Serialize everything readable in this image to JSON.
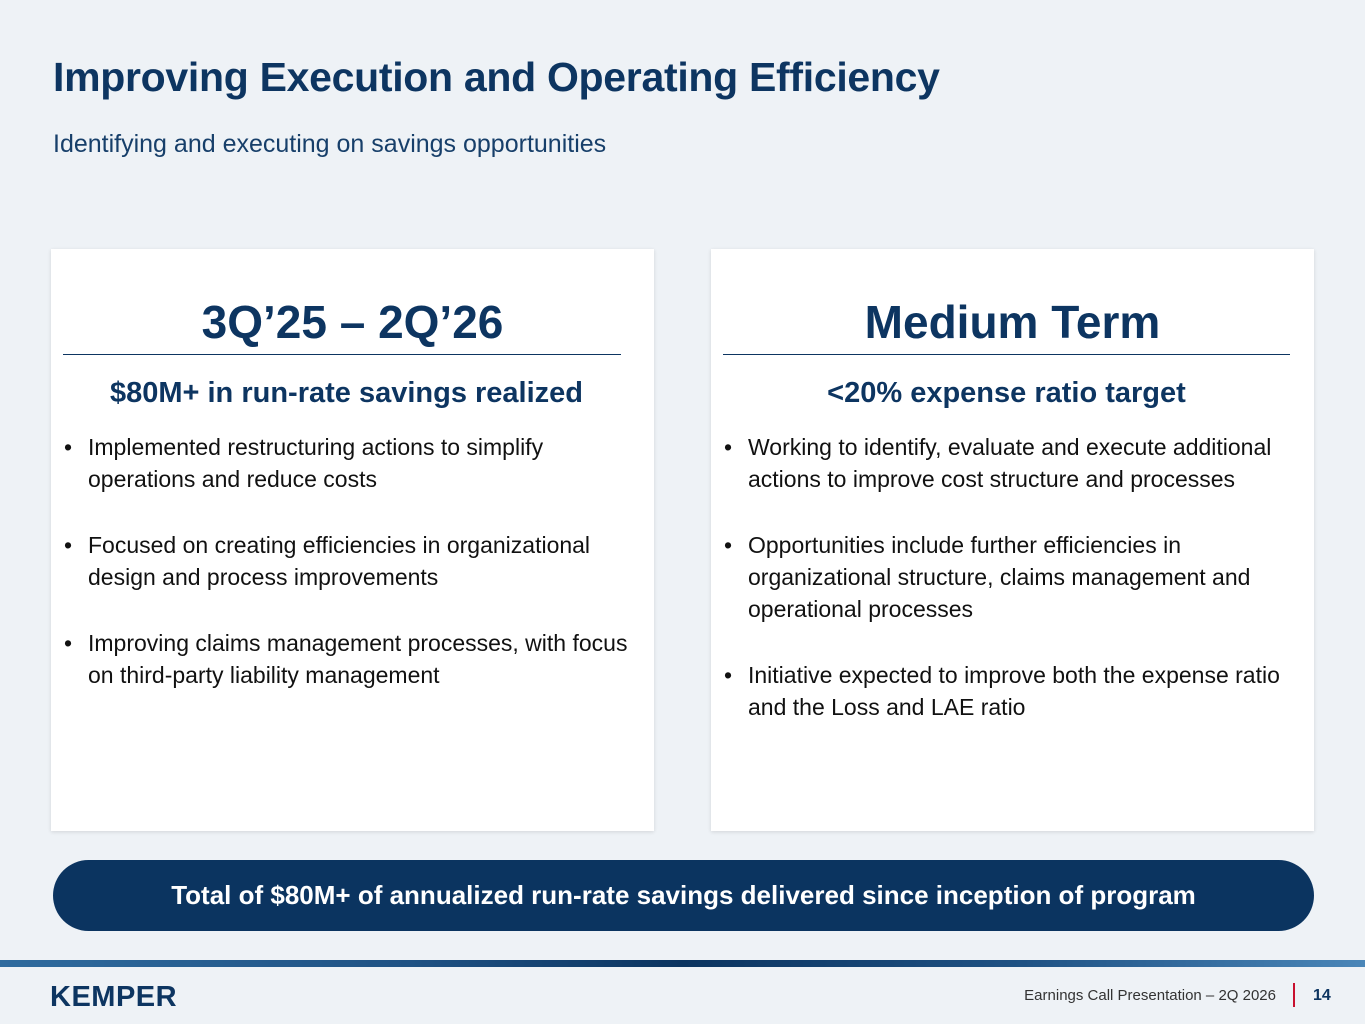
{
  "header": {
    "title": "Improving Execution and Operating Efficiency",
    "subtitle": "Identifying and executing on savings opportunities"
  },
  "cards": [
    {
      "title": "3Q’25 – 2Q’26",
      "subtitle": "$80M+ in run-rate savings realized",
      "bullets": [
        "Implemented restructuring actions to simplify operations and reduce costs",
        "Focused on creating efficiencies in organizational design and process improvements",
        "Improving claims management processes, with focus on third-party liability management"
      ]
    },
    {
      "title": "Medium Term",
      "subtitle": "<20% expense ratio target",
      "bullets": [
        "Working to identify, evaluate and execute additional actions to improve cost structure and processes",
        "Opportunities include further efficiencies in organizational structure, claims management and operational processes",
        "Initiative expected to improve both the expense ratio and the Loss and LAE ratio"
      ]
    }
  ],
  "banner": {
    "text": "Total of $80M+ of annualized run-rate savings delivered since inception of program"
  },
  "footer": {
    "logo": "KEMPER",
    "presentation": "Earnings Call Presentation – 2Q 2026",
    "page_number": "14"
  },
  "colors": {
    "primary": "#0b3460",
    "background": "#eef2f6",
    "accent": "#c8102e"
  }
}
